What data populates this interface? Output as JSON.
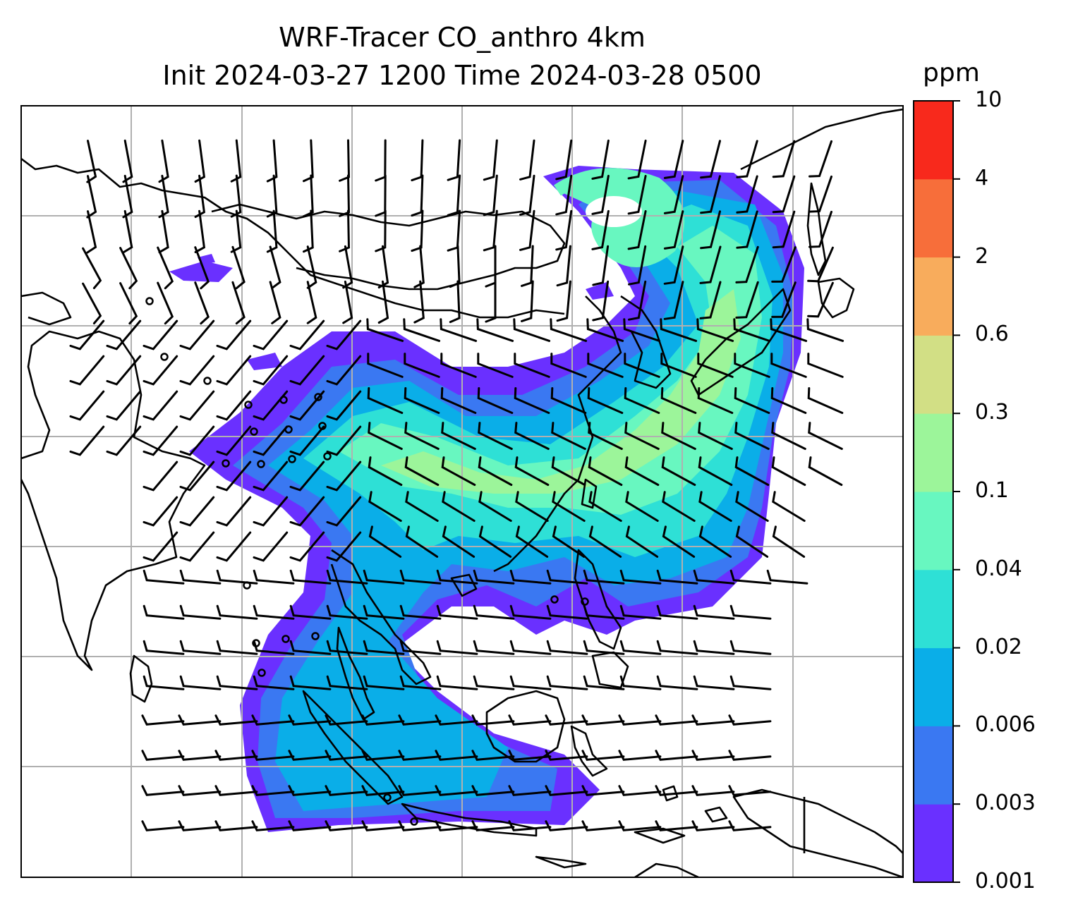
{
  "title": {
    "line1": "WRF-Tracer CO_anthro 4km",
    "line2": "Init 2024-03-27 1200 Time 2024-03-28 0500"
  },
  "colorbar": {
    "units": "ppm",
    "levels": [
      "0.001",
      "0.003",
      "0.006",
      "0.02",
      "0.04",
      "0.1",
      "0.3",
      "0.6",
      "2",
      "4",
      "10"
    ],
    "colors": [
      "#6a30ff",
      "#3a78f2",
      "#0aaee8",
      "#2ee0d6",
      "#68f7c0",
      "#9cf59a",
      "#d2df85",
      "#f8ac5c",
      "#f76e3a",
      "#f8291c"
    ]
  },
  "map": {
    "gridline_color": "#b0b0b0",
    "coastline_color": "#000000",
    "barb_color": "#000000"
  }
}
